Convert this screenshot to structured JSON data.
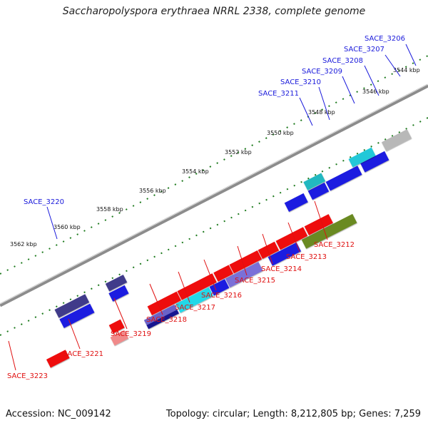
{
  "title": "Saccharopolyspora erythraea NRRL 2338, complete genome",
  "footer": {
    "accession": "Accession: NC_009142",
    "summary": "Topology: circular; Length: 8,212,805 bp; Genes: 7,259"
  },
  "colors": {
    "backbone": "#8c8c8c",
    "ticks": "#1d7a1d",
    "forward_label": "#1a1adb",
    "reverse_label": "#e01010"
  },
  "scale_labels": [
    "3544 kbp",
    "3546 kbp",
    "3548 kbp",
    "3550 kbp",
    "3552 kbp",
    "3554 kbp",
    "3556 kbp",
    "3558 kbp",
    "3560 kbp",
    "3562 kbp"
  ],
  "forward_labels": [
    "SACE_3206",
    "SACE_3207",
    "SACE_3208",
    "SACE_3209",
    "SACE_3210",
    "SACE_3211",
    "SACE_3220"
  ],
  "reverse_labels": [
    "SACE_3212",
    "SACE_3213",
    "SACE_3214",
    "SACE_3215",
    "SACE_3216",
    "SACE_3217",
    "SACE_3218",
    "SACE_3219",
    "SACE_3221",
    "SACE_3223"
  ]
}
